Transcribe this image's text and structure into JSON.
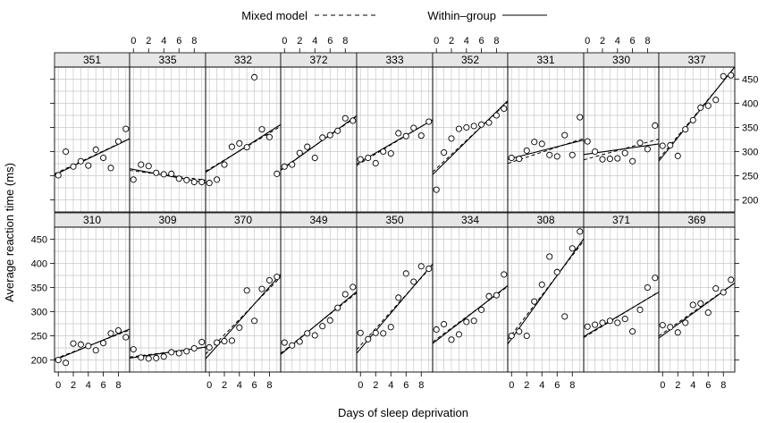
{
  "chart_data": {
    "type": "scatter",
    "layout": "lattice 9 columns x 2 rows",
    "legend": {
      "position": "top",
      "entries": [
        {
          "label": "Mixed model",
          "line": "dashed"
        },
        {
          "label": "Within–group",
          "line": "solid"
        }
      ]
    },
    "xlabel": "Days of sleep deprivation",
    "ylabel": "Average reaction time (ms)",
    "xlim": [
      -0.5,
      9.5
    ],
    "ylim": [
      175,
      475
    ],
    "x_ticks": [
      0,
      2,
      4,
      6,
      8
    ],
    "y_ticks": [
      200,
      250,
      300,
      350,
      400,
      450
    ],
    "grid": true,
    "x": [
      0,
      1,
      2,
      3,
      4,
      5,
      6,
      7,
      8,
      9
    ],
    "panels": [
      {
        "subject": "351",
        "row": 0,
        "col": 0,
        "y": [
          251,
          300,
          269,
          280,
          271,
          304,
          287,
          266,
          321,
          347
        ],
        "within": [
          255.3,
          7.5
        ],
        "mixed": [
          257.5,
          7.3
        ]
      },
      {
        "subject": "335",
        "row": 0,
        "col": 1,
        "y": [
          242,
          273,
          270,
          256,
          253,
          254,
          244,
          241,
          237,
          237
        ],
        "within": [
          263.0,
          -2.9
        ],
        "mixed": [
          260.0,
          -2.0
        ]
      },
      {
        "subject": "332",
        "row": 0,
        "col": 2,
        "y": [
          235,
          242,
          273,
          310,
          317,
          309,
          454,
          346,
          330,
          254
        ],
        "within": [
          262.0,
          9.9
        ],
        "mixed": [
          264.0,
          9.3
        ]
      },
      {
        "subject": "372",
        "row": 0,
        "col": 3,
        "y": [
          269,
          273,
          297,
          310,
          287,
          329,
          334,
          343,
          369,
          364
        ],
        "within": [
          267.0,
          11.3
        ],
        "mixed": [
          268.0,
          11.0
        ]
      },
      {
        "subject": "333",
        "row": 0,
        "col": 4,
        "y": [
          284,
          287,
          276,
          300,
          296,
          338,
          332,
          349,
          333,
          362
        ],
        "within": [
          279.0,
          9.1
        ],
        "mixed": [
          276.0,
          9.5
        ]
      },
      {
        "subject": "352",
        "row": 0,
        "col": 5,
        "y": [
          221,
          298,
          327,
          347,
          350,
          353,
          356,
          360,
          375,
          389
        ],
        "within": [
          260.0,
          15.3
        ],
        "mixed": [
          265.0,
          14.5
        ]
      },
      {
        "subject": "331",
        "row": 0,
        "col": 6,
        "y": [
          287,
          285,
          302,
          320,
          316,
          293,
          290,
          334,
          293,
          371
        ],
        "within": [
          286.0,
          4.0
        ],
        "mixed": [
          278.0,
          5.2
        ]
      },
      {
        "subject": "330",
        "row": 0,
        "col": 7,
        "y": [
          321,
          300,
          284,
          285,
          286,
          297,
          280,
          318,
          305,
          354
        ],
        "within": [
          295.0,
          2.2
        ],
        "mixed": [
          285.0,
          4.3
        ]
      },
      {
        "subject": "337",
        "row": 0,
        "col": 8,
        "y": [
          312,
          313,
          291,
          346,
          365,
          391,
          395,
          407,
          456,
          458
        ],
        "within": [
          290.0,
          19.5
        ],
        "mixed": [
          294.0,
          19.0
        ]
      },
      {
        "subject": "310",
        "row": 1,
        "col": 0,
        "y": [
          200,
          194,
          234,
          232,
          229,
          220,
          235,
          255,
          261,
          247
        ],
        "within": [
          203.0,
          6.4
        ],
        "mixed": [
          205.0,
          6.0
        ]
      },
      {
        "subject": "309",
        "row": 1,
        "col": 1,
        "y": [
          222,
          205,
          203,
          204,
          207,
          216,
          214,
          218,
          224,
          237
        ],
        "within": [
          205.0,
          2.3
        ],
        "mixed": [
          207.0,
          2.0
        ]
      },
      {
        "subject": "370",
        "row": 1,
        "col": 2,
        "y": [
          226,
          236,
          239,
          240,
          267,
          344,
          281,
          347,
          365,
          372
        ],
        "within": [
          211.0,
          17.5
        ],
        "mixed": [
          220.0,
          16.0
        ]
      },
      {
        "subject": "349",
        "row": 1,
        "col": 3,
        "y": [
          236,
          230,
          238,
          255,
          251,
          270,
          282,
          308,
          336,
          351
        ],
        "within": [
          218.0,
          13.0
        ],
        "mixed": [
          220.0,
          12.5
        ]
      },
      {
        "subject": "350",
        "row": 1,
        "col": 4,
        "y": [
          256,
          243,
          256,
          255,
          268,
          329,
          379,
          362,
          394,
          389
        ],
        "within": [
          223.0,
          18.5
        ],
        "mixed": [
          230.0,
          17.5
        ]
      },
      {
        "subject": "334",
        "row": 1,
        "col": 5,
        "y": [
          263,
          274,
          242,
          253,
          279,
          281,
          304,
          332,
          334,
          377
        ],
        "within": [
          240.0,
          12.0
        ],
        "mixed": [
          243.0,
          11.5
        ]
      },
      {
        "subject": "308",
        "row": 1,
        "col": 6,
        "y": [
          250,
          259,
          250,
          321,
          356,
          414,
          382,
          290,
          431,
          466
        ],
        "within": [
          244.0,
          21.8
        ],
        "mixed": [
          252.0,
          20.5
        ]
      },
      {
        "subject": "371",
        "row": 1,
        "col": 7,
        "y": [
          269,
          273,
          277,
          281,
          277,
          285,
          259,
          304,
          350,
          370
        ],
        "within": [
          253.0,
          9.2
        ],
        "mixed": [
          251.0,
          9.5
        ]
      },
      {
        "subject": "369",
        "row": 1,
        "col": 8,
        "y": [
          272,
          268,
          257,
          277,
          314,
          317,
          298,
          348,
          340,
          366
        ],
        "within": [
          251.0,
          11.4
        ],
        "mixed": [
          255.0,
          11.0
        ]
      }
    ]
  }
}
